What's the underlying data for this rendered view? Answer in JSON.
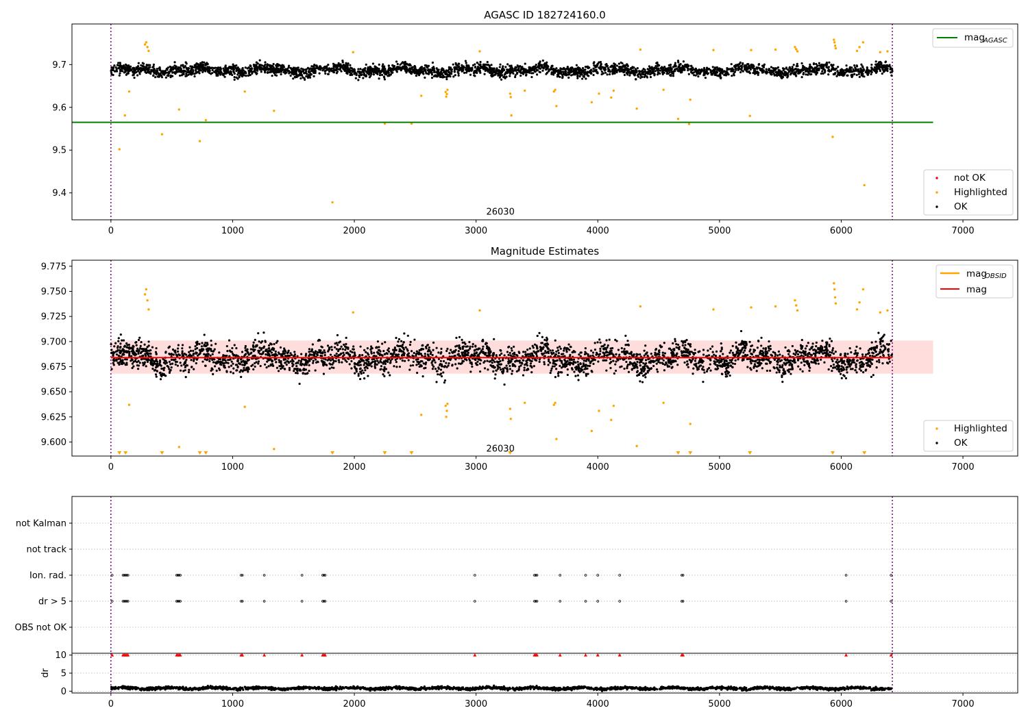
{
  "chart_data": [
    {
      "type": "scatter",
      "panel": "top",
      "title": "AGASC ID 182724160.0",
      "xlabel": "",
      "ylabel": "",
      "xlim": [
        -320,
        7450
      ],
      "ylim": [
        9.337,
        9.795
      ],
      "xticks": [
        0,
        1000,
        2000,
        3000,
        4000,
        5000,
        6000,
        7000
      ],
      "yticks": [
        9.4,
        9.5,
        9.6,
        9.7
      ],
      "ytick_labels": [
        "9.4",
        "9.5",
        "9.6",
        "9.7"
      ],
      "vlines": [
        0,
        6420
      ],
      "annotation": {
        "text": "26030",
        "x": 3200,
        "y": 9.357
      },
      "mag_agasc": 9.565,
      "mag_agasc_xrange": [
        -320,
        6755
      ],
      "ok_band": {
        "x_end": 6420,
        "center": 9.687,
        "spread": 0.013
      },
      "highlighted": [
        [
          70,
          9.502
        ],
        [
          115,
          9.581
        ],
        [
          150,
          9.637
        ],
        [
          280,
          9.747
        ],
        [
          290,
          9.752
        ],
        [
          300,
          9.741
        ],
        [
          310,
          9.732
        ],
        [
          420,
          9.537
        ],
        [
          560,
          9.595
        ],
        [
          730,
          9.521
        ],
        [
          780,
          9.57
        ],
        [
          1100,
          9.637
        ],
        [
          1340,
          9.592
        ],
        [
          1820,
          9.378
        ],
        [
          1990,
          9.729
        ],
        [
          2250,
          9.562
        ],
        [
          2470,
          9.562
        ],
        [
          2550,
          9.627
        ],
        [
          2750,
          9.636
        ],
        [
          2755,
          9.625
        ],
        [
          2760,
          9.631
        ],
        [
          2765,
          9.641
        ],
        [
          3030,
          9.731
        ],
        [
          3280,
          9.632
        ],
        [
          3285,
          9.624
        ],
        [
          3290,
          9.581
        ],
        [
          3400,
          9.639
        ],
        [
          3640,
          9.637
        ],
        [
          3650,
          9.641
        ],
        [
          3660,
          9.603
        ],
        [
          3950,
          9.612
        ],
        [
          4010,
          9.632
        ],
        [
          4110,
          9.623
        ],
        [
          4130,
          9.639
        ],
        [
          4320,
          9.597
        ],
        [
          4350,
          9.735
        ],
        [
          4540,
          9.641
        ],
        [
          4660,
          9.573
        ],
        [
          4750,
          9.561
        ],
        [
          4760,
          9.618
        ],
        [
          4950,
          9.734
        ],
        [
          5250,
          9.58
        ],
        [
          5260,
          9.734
        ],
        [
          5460,
          9.735
        ],
        [
          5620,
          9.741
        ],
        [
          5630,
          9.736
        ],
        [
          5640,
          9.731
        ],
        [
          5930,
          9.531
        ],
        [
          5940,
          9.758
        ],
        [
          5945,
          9.752
        ],
        [
          5950,
          9.744
        ],
        [
          5955,
          9.738
        ],
        [
          6130,
          9.732
        ],
        [
          6150,
          9.741
        ],
        [
          6180,
          9.752
        ],
        [
          6190,
          9.418
        ],
        [
          6320,
          9.729
        ],
        [
          6380,
          9.731
        ]
      ],
      "legend_main": [
        {
          "label": "not OK",
          "color": "#ff0000"
        },
        {
          "label": "Highlighted",
          "color": "#ffa500"
        },
        {
          "label": "OK",
          "color": "#000000"
        }
      ],
      "legend_line": {
        "label": "mag",
        "sub": "AGASC",
        "color": "#008000"
      }
    },
    {
      "type": "scatter",
      "panel": "middle",
      "title": "Magnitude Estimates",
      "xlabel": "",
      "ylabel": "",
      "xlim": [
        -320,
        7450
      ],
      "ylim": [
        9.586,
        9.781
      ],
      "xticks": [
        0,
        1000,
        2000,
        3000,
        4000,
        5000,
        6000,
        7000
      ],
      "yticks": [
        9.6,
        9.625,
        9.65,
        9.675,
        9.7,
        9.725,
        9.75,
        9.775
      ],
      "ytick_labels": [
        "9.600",
        "9.625",
        "9.650",
        "9.675",
        "9.700",
        "9.725",
        "9.750",
        "9.775"
      ],
      "vlines": [
        0,
        6420
      ],
      "annotation": {
        "text": "26030",
        "x": 3200,
        "y": 9.594
      },
      "mag": 9.684,
      "mag_xrange": [
        0,
        6420
      ],
      "mag_band": {
        "low": 9.668,
        "high": 9.701,
        "x_range": [
          0,
          6755
        ]
      },
      "ok_band": {
        "x_end": 6420,
        "center": 9.684,
        "spread": 0.014
      },
      "highlighted": [
        [
          150,
          9.637
        ],
        [
          280,
          9.747
        ],
        [
          290,
          9.752
        ],
        [
          300,
          9.741
        ],
        [
          310,
          9.732
        ],
        [
          560,
          9.595
        ],
        [
          1100,
          9.635
        ],
        [
          1340,
          9.593
        ],
        [
          1990,
          9.729
        ],
        [
          2550,
          9.627
        ],
        [
          2750,
          9.636
        ],
        [
          2755,
          9.625
        ],
        [
          2760,
          9.631
        ],
        [
          2765,
          9.638
        ],
        [
          3030,
          9.731
        ],
        [
          3280,
          9.633
        ],
        [
          3285,
          9.623
        ],
        [
          3400,
          9.639
        ],
        [
          3640,
          9.637
        ],
        [
          3650,
          9.639
        ],
        [
          3660,
          9.603
        ],
        [
          3950,
          9.611
        ],
        [
          4010,
          9.631
        ],
        [
          4110,
          9.622
        ],
        [
          4130,
          9.636
        ],
        [
          4320,
          9.596
        ],
        [
          4350,
          9.735
        ],
        [
          4540,
          9.639
        ],
        [
          4760,
          9.618
        ],
        [
          4950,
          9.732
        ],
        [
          5260,
          9.734
        ],
        [
          5460,
          9.735
        ],
        [
          5620,
          9.741
        ],
        [
          5630,
          9.736
        ],
        [
          5640,
          9.731
        ],
        [
          5940,
          9.758
        ],
        [
          5945,
          9.752
        ],
        [
          5950,
          9.744
        ],
        [
          5955,
          9.738
        ],
        [
          6130,
          9.732
        ],
        [
          6150,
          9.739
        ],
        [
          6180,
          9.752
        ],
        [
          6320,
          9.729
        ],
        [
          6380,
          9.731
        ]
      ],
      "below_range_markers_x": [
        70,
        120,
        420,
        730,
        780,
        1820,
        2250,
        2470,
        3280,
        4660,
        4760,
        5250,
        5930,
        6190
      ],
      "legend_main": [
        {
          "label": "Highlighted",
          "color": "#ffa500"
        },
        {
          "label": "OK",
          "color": "#000000"
        }
      ],
      "legend_lines": [
        {
          "label": "mag",
          "sub": "OBSID",
          "color": "#ffa500"
        },
        {
          "label": "mag",
          "sub": "",
          "color": "#ff0000"
        }
      ]
    },
    {
      "type": "scatter",
      "panel": "flags",
      "title": "",
      "xlim": [
        -320,
        7450
      ],
      "categories": [
        "OBS not OK",
        "dr > 5",
        "Ion. rad.",
        "not track",
        "not Kalman"
      ],
      "vlines": [
        0,
        6420
      ],
      "flag_x": [
        10,
        100,
        110,
        120,
        130,
        140,
        540,
        550,
        560,
        570,
        1070,
        1080,
        1260,
        1570,
        1740,
        1750,
        1760,
        2990,
        3480,
        3490,
        3500,
        3690,
        3900,
        4000,
        4180,
        4690,
        4700,
        6040,
        6410
      ],
      "flags": {
        "Ion. rad.": "flag_x",
        "dr > 5": "flag_x"
      }
    },
    {
      "type": "scatter",
      "panel": "dr",
      "title": "",
      "ylabel": "dr",
      "xlim": [
        -320,
        7450
      ],
      "ylim": [
        -0.5,
        10.5
      ],
      "xticks": [
        0,
        1000,
        2000,
        3000,
        4000,
        5000,
        6000,
        7000
      ],
      "yticks": [
        0,
        5,
        10
      ],
      "ytick_labels": [
        "0",
        "5",
        "10"
      ],
      "vlines": [
        0,
        6420
      ],
      "clipped_markers_x": [
        10,
        100,
        110,
        120,
        130,
        140,
        540,
        550,
        560,
        570,
        1070,
        1080,
        1260,
        1570,
        1740,
        1750,
        1760,
        2990,
        3480,
        3490,
        3500,
        3690,
        3900,
        4000,
        4180,
        4690,
        4700,
        6040,
        6410
      ],
      "ok_band": {
        "x_end": 6420,
        "center": 0.8,
        "spread": 0.45
      }
    }
  ]
}
